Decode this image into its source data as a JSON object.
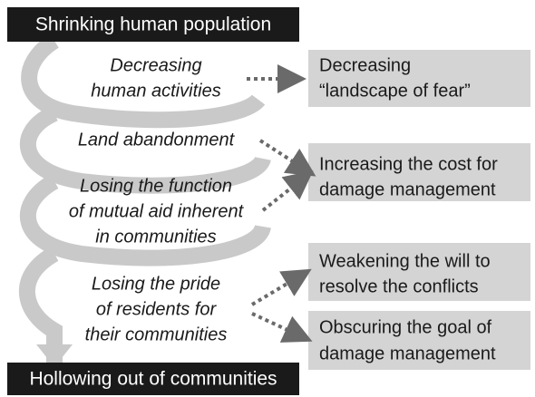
{
  "header": "Shrinking human population",
  "footer": "Hollowing out of communities",
  "causes": [
    {
      "lines": [
        "Decreasing",
        "human activities"
      ]
    },
    {
      "lines": [
        "Land abandonment"
      ]
    },
    {
      "lines": [
        "Losing the function",
        "of mutual aid inherent",
        "in communities"
      ]
    },
    {
      "lines": [
        "Losing the pride",
        "of residents for",
        "their communities"
      ]
    }
  ],
  "effects": [
    {
      "lines": [
        "Decreasing",
        "“landscape of fear”"
      ]
    },
    {
      "lines": [
        "Increasing the cost for",
        "damage management"
      ]
    },
    {
      "lines": [
        "Weakening the will to",
        "resolve the conflicts"
      ]
    },
    {
      "lines": [
        "Obscuring the goal of",
        "damage management"
      ]
    }
  ]
}
